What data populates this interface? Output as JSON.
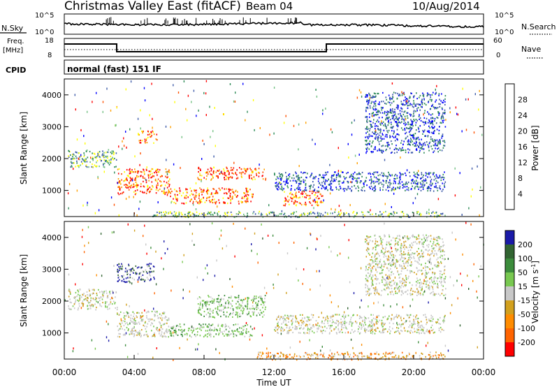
{
  "header": {
    "title": "Christmas Valley East (fitACF)",
    "beam": "Beam 04",
    "date": "10/Aug/2014"
  },
  "panels": {
    "nsky_label": "N.Sky",
    "nsearch_label": "N.Search",
    "freq_label_1": "Freq.",
    "freq_label_2": "[MHz]",
    "nave_label": "Nave",
    "cpid_label": "CPID",
    "cpid_value": "normal (fast) 151 IF",
    "noise_ticks_left": [
      "10^5",
      "10^0"
    ],
    "noise_ticks_right": [
      "10^5",
      "10^0"
    ],
    "freq_ticks_left": [
      "18",
      "8"
    ],
    "nave_ticks_right": [
      "60",
      "0"
    ]
  },
  "colors": {
    "power": [
      "#0000ff",
      "#3c5aa8",
      "#2e8b57",
      "#72c082",
      "#ffff00",
      "#ffa000",
      "#ff5000",
      "#ff0000"
    ],
    "velocity": [
      "#1a1aa8",
      "#326432",
      "#3c8c3c",
      "#78c850",
      "#c8c8c8",
      "#d2a01e",
      "#ff8c00",
      "#ff6400",
      "#ff0000"
    ]
  },
  "chart_data": [
    {
      "type": "heatmap",
      "name": "power",
      "xlabel": "",
      "ylabel": "Slant Range [km]",
      "ylim": [
        180,
        4500
      ],
      "yticks": [
        1000,
        2000,
        3000,
        4000
      ],
      "colorbar_label": "Power [dB]",
      "colorbar_ticks": [
        "4",
        "8",
        "12",
        "16",
        "20",
        "24",
        "28"
      ],
      "echo_regions": [
        {
          "t": [
            0.2,
            3.0
          ],
          "r": [
            1750,
            2300
          ],
          "level": "medium"
        },
        {
          "t": [
            3.0,
            6.0
          ],
          "r": [
            900,
            1700
          ],
          "level": "strong"
        },
        {
          "t": [
            4.2,
            5.3
          ],
          "r": [
            2500,
            2900
          ],
          "level": "strong"
        },
        {
          "t": [
            6.0,
            10.8
          ],
          "r": [
            600,
            1100
          ],
          "level": "strong"
        },
        {
          "t": [
            7.6,
            11.5
          ],
          "r": [
            1350,
            1750
          ],
          "level": "strong"
        },
        {
          "t": [
            12.5,
            14.8
          ],
          "r": [
            550,
            1000
          ],
          "level": "strong"
        },
        {
          "t": [
            12.0,
            21.8
          ],
          "r": [
            1000,
            1600
          ],
          "level": "weak"
        },
        {
          "t": [
            17.2,
            21.8
          ],
          "r": [
            2200,
            4100
          ],
          "level": "weak"
        },
        {
          "t": [
            5.0,
            21.8
          ],
          "r": [
            180,
            360
          ],
          "level": "medium"
        }
      ]
    },
    {
      "type": "heatmap",
      "name": "velocity",
      "xlabel": "Time UT",
      "ylabel": "Slant Range [km]",
      "ylim": [
        180,
        4500
      ],
      "yticks": [
        1000,
        2000,
        3000,
        4000
      ],
      "colorbar_label": "Velocity [m s^-1]",
      "colorbar_ticks": [
        "200",
        "100",
        "50",
        "15",
        "-15",
        "-50",
        "-100",
        "-200"
      ],
      "xlim": [
        0,
        24
      ],
      "xticks": [
        "00:00",
        "04:00",
        "08:00",
        "12:00",
        "16:00",
        "20:00",
        "00:00"
      ],
      "echo_regions": [
        {
          "t": [
            0.2,
            3.0
          ],
          "r": [
            1750,
            2400
          ],
          "level": "ground"
        },
        {
          "t": [
            3.0,
            6.0
          ],
          "r": [
            900,
            1700
          ],
          "level": "ground"
        },
        {
          "t": [
            6.0,
            10.8
          ],
          "r": [
            900,
            1300
          ],
          "level": "positive"
        },
        {
          "t": [
            7.6,
            11.5
          ],
          "r": [
            1500,
            2200
          ],
          "level": "positive"
        },
        {
          "t": [
            3.0,
            5.2
          ],
          "r": [
            2600,
            3200
          ],
          "level": "strong-positive"
        },
        {
          "t": [
            11.0,
            21.8
          ],
          "r": [
            180,
            420
          ],
          "level": "negative"
        },
        {
          "t": [
            12.0,
            21.8
          ],
          "r": [
            1000,
            1600
          ],
          "level": "ground"
        },
        {
          "t": [
            17.2,
            21.8
          ],
          "r": [
            2200,
            4100
          ],
          "level": "ground"
        }
      ]
    }
  ],
  "axis": {
    "time_label": "Time UT",
    "range_label": "Slant Range [km]",
    "power_label": "Power [dB]",
    "velocity_label": "Velocity [m s",
    "velocity_label_exp": "-1",
    "velocity_label_end": "]"
  }
}
